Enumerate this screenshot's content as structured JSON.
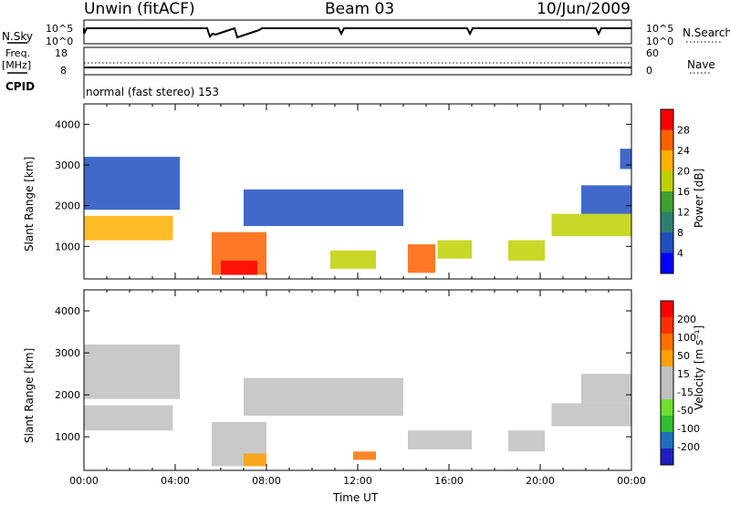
{
  "header": {
    "title_left": "Unwin (fitACF)",
    "title_center": "Beam 03",
    "title_right": "10/Jun/2009"
  },
  "nsky_panel": {
    "left_label": "N.Sky",
    "left_ticks": [
      "10^5",
      "10^0"
    ],
    "right_ticks": [
      "10^5",
      "10^0"
    ],
    "right_label": "N.Search"
  },
  "freq_panel": {
    "left_label_top": "Freq.",
    "left_label_unit": "[MHz]",
    "left_ticks": [
      "18",
      "8"
    ],
    "right_ticks": [
      "60",
      "0"
    ],
    "right_label": "Nave",
    "cpid_label": "CPID",
    "cpid_text": "normal (fast stereo) 153"
  },
  "colors": {
    "power": [
      "#0000ff",
      "#1f4fbf",
      "#2f7f6f",
      "#3fa030",
      "#bfd000",
      "#ffb000",
      "#ff6000",
      "#ff0000"
    ],
    "velocity": [
      "#1f1fbf",
      "#1f6fbf",
      "#2fbf2f",
      "#6fdf2f",
      "#c0c0c0",
      "#c0c0c0",
      "#ffa000",
      "#ff7000",
      "#ff3000",
      "#ff0000"
    ]
  },
  "chart_data": [
    {
      "type": "heatmap",
      "name": "Power",
      "ylabel": "Slant Range [km]",
      "yticks": [
        1000,
        2000,
        3000,
        4000
      ],
      "ylim": [
        200,
        4500
      ],
      "xlim": [
        0,
        24
      ],
      "colorbar_label": "Power [dB]",
      "colorbar_ticks": [
        "4",
        "8",
        "12",
        "16",
        "20",
        "24",
        "28"
      ],
      "regions": [
        {
          "t0": 0.0,
          "t1": 3.9,
          "r0": 1150,
          "r1": 1750,
          "level": 5
        },
        {
          "t0": 0.0,
          "t1": 4.2,
          "r0": 1900,
          "r1": 3200,
          "level": 1
        },
        {
          "t0": 5.6,
          "t1": 8.0,
          "r0": 300,
          "r1": 1350,
          "level": 6
        },
        {
          "t0": 6.0,
          "t1": 7.6,
          "r0": 300,
          "r1": 650,
          "level": 7
        },
        {
          "t0": 7.0,
          "t1": 14.0,
          "r0": 1500,
          "r1": 2400,
          "level": 1
        },
        {
          "t0": 10.8,
          "t1": 12.8,
          "r0": 450,
          "r1": 900,
          "level": 4
        },
        {
          "t0": 14.2,
          "t1": 15.4,
          "r0": 350,
          "r1": 1050,
          "level": 6
        },
        {
          "t0": 15.5,
          "t1": 17.0,
          "r0": 700,
          "r1": 1150,
          "level": 4
        },
        {
          "t0": 18.6,
          "t1": 20.2,
          "r0": 650,
          "r1": 1150,
          "level": 4
        },
        {
          "t0": 20.5,
          "t1": 24.0,
          "r0": 1250,
          "r1": 1800,
          "level": 4
        },
        {
          "t0": 21.8,
          "t1": 24.0,
          "r0": 1800,
          "r1": 2500,
          "level": 1
        },
        {
          "t0": 23.5,
          "t1": 24.0,
          "r0": 2900,
          "r1": 3400,
          "level": 1
        }
      ]
    },
    {
      "type": "heatmap",
      "name": "Velocity",
      "ylabel": "Slant Range [km]",
      "yticks": [
        1000,
        2000,
        3000,
        4000
      ],
      "ylim": [
        200,
        4500
      ],
      "xlim": [
        0,
        24
      ],
      "xlabel": "Time UT",
      "xticks": [
        "00:00",
        "04:00",
        "08:00",
        "12:00",
        "16:00",
        "20:00",
        "00:00"
      ],
      "colorbar_label": "Velocity [m s⁻¹]",
      "colorbar_ticks": [
        "-200",
        "-100",
        "-50",
        "-15",
        "15",
        "50",
        "100",
        "200"
      ],
      "regions": [
        {
          "t0": 0.0,
          "t1": 3.9,
          "r0": 1150,
          "r1": 1750,
          "level": 4
        },
        {
          "t0": 0.0,
          "t1": 4.2,
          "r0": 1900,
          "r1": 3200,
          "level": 4
        },
        {
          "t0": 5.6,
          "t1": 8.0,
          "r0": 300,
          "r1": 1350,
          "level": 4
        },
        {
          "t0": 7.0,
          "t1": 8.0,
          "r0": 300,
          "r1": 600,
          "level": 6
        },
        {
          "t0": 7.0,
          "t1": 14.0,
          "r0": 1500,
          "r1": 2400,
          "level": 4
        },
        {
          "t0": 11.8,
          "t1": 12.8,
          "r0": 450,
          "r1": 650,
          "level": 7
        },
        {
          "t0": 14.2,
          "t1": 17.0,
          "r0": 700,
          "r1": 1150,
          "level": 4
        },
        {
          "t0": 18.6,
          "t1": 20.2,
          "r0": 650,
          "r1": 1150,
          "level": 4
        },
        {
          "t0": 20.5,
          "t1": 24.0,
          "r0": 1250,
          "r1": 1800,
          "level": 4
        },
        {
          "t0": 21.8,
          "t1": 24.0,
          "r0": 1800,
          "r1": 2500,
          "level": 4
        }
      ]
    }
  ]
}
